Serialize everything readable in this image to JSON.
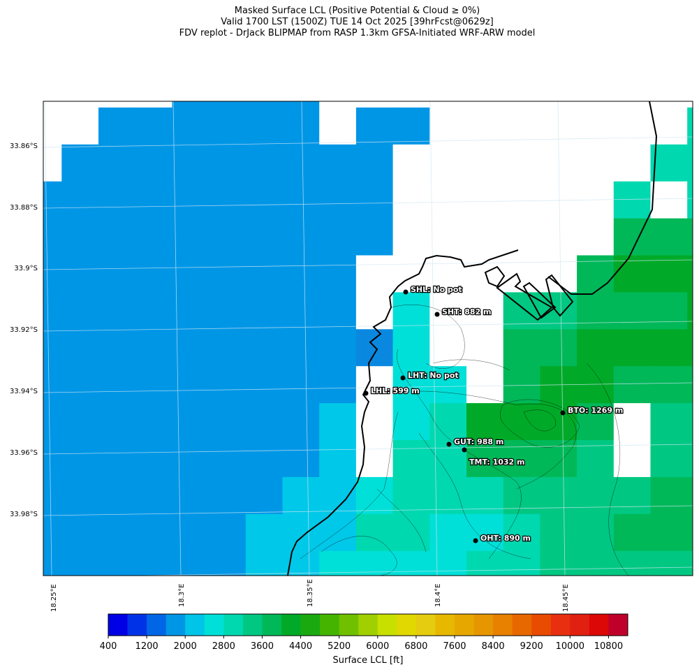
{
  "title": {
    "line1": "Masked Surface LCL (Positive Potential & Cloud ≥ 0%)",
    "line2": "Valid 1700 LST (1500Z) TUE 14 Oct 2025 [39hrFcst@0629z]",
    "line3": "FDV replot - DrJack BLIPMAP from RASP 1.3km GFSA-Initiated WRF-ARW model"
  },
  "lat_labels": [
    "33.86°S",
    "33.88°S",
    "33.9°S",
    "33.92°S",
    "33.94°S",
    "33.96°S",
    "33.98°S"
  ],
  "lon_labels": [
    "18.25°E",
    "18.3°E",
    "18.35°E",
    "18.4°E",
    "18.45°E"
  ],
  "stations": [
    {
      "label": "SHL: No pot"
    },
    {
      "label": "SHT: 882 m"
    },
    {
      "label": "LHT: No pot"
    },
    {
      "label": "LHL: 599 m"
    },
    {
      "label": "BTO: 1269 m"
    },
    {
      "label": "GUT: 988 m"
    },
    {
      "label": "TMT: 1032 m"
    },
    {
      "label": "OHT: 890 m"
    }
  ],
  "grid_legend": {
    "W": "#ffffff",
    "B": "#0096e6",
    "D": "#0a88e0",
    "C": "#00c8e8",
    "T": "#00e0d8",
    "Q": "#00d8b0",
    "G": "#00c882",
    "H": "#00b858",
    "K": "#00aa28"
  },
  "grid": [
    "WWWWBBBBWWWWWWWWWWW",
    "WWBBBBBBWBBWWWWWWWQ",
    "WBBBBBBBBBWWWWWWWQQ",
    "BBBBBBBBBBWWWWWWQWQ",
    "BBBBBBBBBBWWWWWWHHH",
    "BBBBBBBBBWWWWWWHKKK",
    "BBBBBBBBBWTWWGGHHHK",
    "BBBBBBBBBDTWWHHKKKK",
    "BBBBBBBBBWTTWHKKHHH",
    "BBBBBBBBCWTQKKKHWGG",
    "BBBBBBBBCWQQHHHGWGG",
    "BBBBBBBCCTQQQGGGGHH",
    "BBBBBBCCCQQTTQGGHHH",
    "BBBBBBCCTTTTQQGGGGG"
  ],
  "colorbar": {
    "label": "Surface LCL [ft]",
    "ticks": [
      "400",
      "1200",
      "2000",
      "2800",
      "3600",
      "4400",
      "5200",
      "6000",
      "6800",
      "7600",
      "8400",
      "9200",
      "10000",
      "10800"
    ],
    "colors": [
      "#0000e6",
      "#0033e8",
      "#0066e6",
      "#0096e6",
      "#00c4e8",
      "#00e0d8",
      "#00d8b0",
      "#00c882",
      "#00b858",
      "#00aa28",
      "#1aaa10",
      "#44b400",
      "#70c000",
      "#a0d000",
      "#c8e000",
      "#e0d800",
      "#e6cc10",
      "#e6b800",
      "#e6a800",
      "#e69600",
      "#e88000",
      "#e86800",
      "#e84c00",
      "#e83010",
      "#e02010",
      "#dc0808",
      "#c0002a"
    ]
  }
}
